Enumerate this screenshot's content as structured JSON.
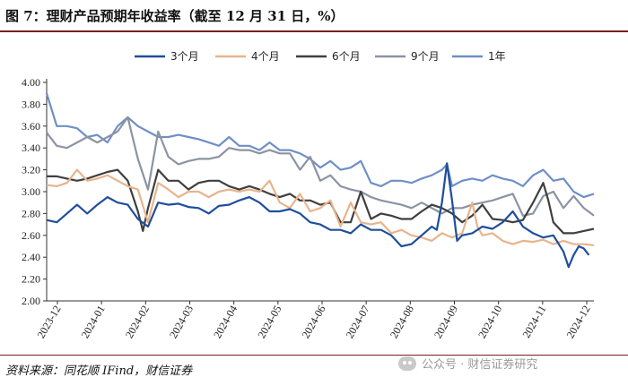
{
  "title": "图 7：理财产品预期年收益率（截至 12 月 31 日，%）",
  "source": "资料来源：同花顺 IFind，财信证券",
  "watermark": "公众号 · 财信证券研究",
  "chart_data": {
    "type": "line",
    "title": "理财产品预期年收益率（截至 12 月 31 日，%）",
    "xlabel": "",
    "ylabel": "",
    "ylim": [
      2.0,
      4.0
    ],
    "yticks": [
      "4.00",
      "3.80",
      "3.60",
      "3.40",
      "3.20",
      "3.00",
      "2.80",
      "2.60",
      "2.40",
      "2.20",
      "2.00"
    ],
    "ytick_values": [
      4.0,
      3.8,
      3.6,
      3.4,
      3.2,
      3.0,
      2.8,
      2.6,
      2.4,
      2.2,
      2.0
    ],
    "xticks": [
      "2023-12",
      "2024-01",
      "2024-02",
      "2024-03",
      "2024-04",
      "2024-05",
      "2024-06",
      "2024-07",
      "2024-08",
      "2024-09",
      "2024-10",
      "2024-11",
      "2024-12"
    ],
    "x_range_weeks": [
      0,
      54
    ],
    "legend": [
      "3个月",
      "4个月",
      "6个月",
      "9个月",
      "1年"
    ],
    "series": [
      {
        "name": "3个月",
        "color": "#1f4e9c",
        "points": [
          [
            0,
            2.74
          ],
          [
            1,
            2.72
          ],
          [
            2,
            2.8
          ],
          [
            3,
            2.88
          ],
          [
            4,
            2.8
          ],
          [
            5,
            2.88
          ],
          [
            6,
            2.95
          ],
          [
            7,
            2.9
          ],
          [
            8,
            2.88
          ],
          [
            9,
            2.75
          ],
          [
            10,
            2.68
          ],
          [
            11,
            2.9
          ],
          [
            12,
            2.88
          ],
          [
            13,
            2.89
          ],
          [
            14,
            2.86
          ],
          [
            15,
            2.85
          ],
          [
            16,
            2.8
          ],
          [
            17,
            2.87
          ],
          [
            18,
            2.88
          ],
          [
            19,
            2.92
          ],
          [
            20,
            2.95
          ],
          [
            21,
            2.9
          ],
          [
            22,
            2.82
          ],
          [
            23,
            2.82
          ],
          [
            24,
            2.84
          ],
          [
            25,
            2.8
          ],
          [
            26,
            2.72
          ],
          [
            27,
            2.7
          ],
          [
            28,
            2.65
          ],
          [
            29,
            2.65
          ],
          [
            30,
            2.62
          ],
          [
            31,
            2.7
          ],
          [
            32,
            2.65
          ],
          [
            33,
            2.65
          ],
          [
            34,
            2.6
          ],
          [
            35,
            2.5
          ],
          [
            36,
            2.52
          ],
          [
            37,
            2.6
          ],
          [
            38,
            2.68
          ],
          [
            38.5,
            2.65
          ],
          [
            39,
            2.9
          ],
          [
            39.5,
            3.26
          ],
          [
            40,
            2.92
          ],
          [
            40.5,
            2.55
          ],
          [
            41,
            2.6
          ],
          [
            42,
            2.62
          ],
          [
            43,
            2.68
          ],
          [
            44,
            2.66
          ],
          [
            45,
            2.72
          ],
          [
            46,
            2.82
          ],
          [
            47,
            2.68
          ],
          [
            48,
            2.62
          ],
          [
            49,
            2.58
          ],
          [
            50,
            2.6
          ],
          [
            51,
            2.45
          ],
          [
            51.5,
            2.31
          ],
          [
            52,
            2.42
          ],
          [
            52.5,
            2.5
          ],
          [
            53,
            2.48
          ],
          [
            53.5,
            2.42
          ]
        ]
      },
      {
        "name": "4个月",
        "color": "#e8b48c",
        "points": [
          [
            0,
            3.06
          ],
          [
            1,
            3.05
          ],
          [
            2,
            3.08
          ],
          [
            3,
            3.2
          ],
          [
            4,
            3.1
          ],
          [
            5,
            3.12
          ],
          [
            6,
            3.15
          ],
          [
            7,
            3.1
          ],
          [
            8,
            3.05
          ],
          [
            9,
            3.02
          ],
          [
            10,
            2.72
          ],
          [
            11,
            3.08
          ],
          [
            12,
            3.02
          ],
          [
            13,
            2.95
          ],
          [
            14,
            3.0
          ],
          [
            15,
            3.0
          ],
          [
            16,
            2.95
          ],
          [
            17,
            3.0
          ],
          [
            18,
            3.02
          ],
          [
            19,
            3.0
          ],
          [
            20,
            3.02
          ],
          [
            21,
            3.0
          ],
          [
            22,
            3.1
          ],
          [
            23,
            2.9
          ],
          [
            24,
            2.85
          ],
          [
            25,
            2.98
          ],
          [
            26,
            2.82
          ],
          [
            27,
            2.85
          ],
          [
            28,
            2.92
          ],
          [
            29,
            2.68
          ],
          [
            30,
            2.9
          ],
          [
            31,
            2.72
          ],
          [
            32,
            2.7
          ],
          [
            33,
            2.72
          ],
          [
            34,
            2.62
          ],
          [
            35,
            2.65
          ],
          [
            36,
            2.6
          ],
          [
            37,
            2.58
          ],
          [
            38,
            2.55
          ],
          [
            39,
            2.62
          ],
          [
            40,
            2.58
          ],
          [
            41,
            2.62
          ],
          [
            42,
            2.9
          ],
          [
            42.5,
            2.68
          ],
          [
            43,
            2.6
          ],
          [
            44,
            2.62
          ],
          [
            45,
            2.55
          ],
          [
            46,
            2.52
          ],
          [
            47,
            2.55
          ],
          [
            48,
            2.54
          ],
          [
            49,
            2.56
          ],
          [
            50,
            2.52
          ],
          [
            51,
            2.55
          ],
          [
            52,
            2.52
          ],
          [
            53,
            2.52
          ],
          [
            54,
            2.51
          ]
        ]
      },
      {
        "name": "6个月",
        "color": "#3f3f3f",
        "points": [
          [
            0,
            3.14
          ],
          [
            1,
            3.14
          ],
          [
            2,
            3.12
          ],
          [
            3,
            3.1
          ],
          [
            4,
            3.12
          ],
          [
            5,
            3.15
          ],
          [
            6,
            3.18
          ],
          [
            7,
            3.2
          ],
          [
            8,
            3.1
          ],
          [
            9,
            2.82
          ],
          [
            9.5,
            2.64
          ],
          [
            10,
            2.85
          ],
          [
            11,
            3.2
          ],
          [
            12,
            3.1
          ],
          [
            13,
            3.1
          ],
          [
            14,
            3.02
          ],
          [
            15,
            3.08
          ],
          [
            16,
            3.1
          ],
          [
            17,
            3.1
          ],
          [
            18,
            3.05
          ],
          [
            19,
            3.02
          ],
          [
            20,
            3.05
          ],
          [
            21,
            3.02
          ],
          [
            22,
            2.98
          ],
          [
            23,
            2.95
          ],
          [
            24,
            2.98
          ],
          [
            25,
            2.92
          ],
          [
            26,
            2.92
          ],
          [
            27,
            2.88
          ],
          [
            28,
            2.9
          ],
          [
            29,
            2.72
          ],
          [
            30,
            2.72
          ],
          [
            31,
            3.0
          ],
          [
            32,
            2.75
          ],
          [
            33,
            2.8
          ],
          [
            34,
            2.78
          ],
          [
            35,
            2.75
          ],
          [
            36,
            2.75
          ],
          [
            37,
            2.82
          ],
          [
            38,
            2.88
          ],
          [
            39,
            2.85
          ],
          [
            40,
            2.8
          ],
          [
            41,
            2.72
          ],
          [
            42,
            2.78
          ],
          [
            43,
            2.88
          ],
          [
            44,
            2.75
          ],
          [
            45,
            2.74
          ],
          [
            46,
            2.72
          ],
          [
            47,
            2.74
          ],
          [
            48,
            2.9
          ],
          [
            49,
            3.08
          ],
          [
            49.5,
            2.92
          ],
          [
            50,
            2.72
          ],
          [
            51,
            2.62
          ],
          [
            52,
            2.62
          ],
          [
            53,
            2.64
          ],
          [
            54,
            2.66
          ]
        ]
      },
      {
        "name": "9个月",
        "color": "#8c93a3",
        "points": [
          [
            0,
            3.54
          ],
          [
            1,
            3.42
          ],
          [
            2,
            3.4
          ],
          [
            3,
            3.45
          ],
          [
            4,
            3.5
          ],
          [
            5,
            3.45
          ],
          [
            6,
            3.5
          ],
          [
            7,
            3.55
          ],
          [
            8,
            3.68
          ],
          [
            9,
            3.3
          ],
          [
            10,
            3.02
          ],
          [
            11,
            3.55
          ],
          [
            12,
            3.32
          ],
          [
            13,
            3.25
          ],
          [
            14,
            3.28
          ],
          [
            15,
            3.3
          ],
          [
            16,
            3.3
          ],
          [
            17,
            3.32
          ],
          [
            18,
            3.4
          ],
          [
            19,
            3.38
          ],
          [
            20,
            3.38
          ],
          [
            21,
            3.35
          ],
          [
            22,
            3.38
          ],
          [
            23,
            3.35
          ],
          [
            24,
            3.35
          ],
          [
            25,
            3.2
          ],
          [
            26,
            3.32
          ],
          [
            27,
            3.1
          ],
          [
            28,
            3.15
          ],
          [
            29,
            3.05
          ],
          [
            30,
            3.02
          ],
          [
            31,
            3.0
          ],
          [
            32,
            2.95
          ],
          [
            33,
            2.92
          ],
          [
            34,
            2.9
          ],
          [
            35,
            2.88
          ],
          [
            36,
            2.85
          ],
          [
            37,
            2.9
          ],
          [
            38,
            2.85
          ],
          [
            39,
            2.8
          ],
          [
            40,
            2.85
          ],
          [
            41,
            2.85
          ],
          [
            42,
            2.88
          ],
          [
            43,
            2.9
          ],
          [
            44,
            2.92
          ],
          [
            45,
            2.95
          ],
          [
            46,
            2.98
          ],
          [
            47,
            2.78
          ],
          [
            48,
            2.8
          ],
          [
            49,
            2.96
          ],
          [
            50,
            3.0
          ],
          [
            51,
            2.85
          ],
          [
            52,
            2.96
          ],
          [
            53,
            2.85
          ],
          [
            54,
            2.78
          ]
        ]
      },
      {
        "name": "1年",
        "color": "#6f8fc6",
        "points": [
          [
            0,
            3.9
          ],
          [
            1,
            3.6
          ],
          [
            2,
            3.6
          ],
          [
            3,
            3.58
          ],
          [
            4,
            3.5
          ],
          [
            5,
            3.52
          ],
          [
            6,
            3.45
          ],
          [
            7,
            3.6
          ],
          [
            8,
            3.68
          ],
          [
            9,
            3.6
          ],
          [
            10,
            3.55
          ],
          [
            11,
            3.5
          ],
          [
            12,
            3.5
          ],
          [
            13,
            3.52
          ],
          [
            14,
            3.5
          ],
          [
            15,
            3.48
          ],
          [
            16,
            3.45
          ],
          [
            17,
            3.42
          ],
          [
            18,
            3.5
          ],
          [
            19,
            3.42
          ],
          [
            20,
            3.42
          ],
          [
            21,
            3.38
          ],
          [
            22,
            3.45
          ],
          [
            23,
            3.38
          ],
          [
            24,
            3.38
          ],
          [
            25,
            3.35
          ],
          [
            26,
            3.3
          ],
          [
            27,
            3.22
          ],
          [
            28,
            3.28
          ],
          [
            29,
            3.2
          ],
          [
            30,
            3.22
          ],
          [
            31,
            3.28
          ],
          [
            32,
            3.08
          ],
          [
            33,
            3.05
          ],
          [
            34,
            3.1
          ],
          [
            35,
            3.1
          ],
          [
            36,
            3.08
          ],
          [
            37,
            3.12
          ],
          [
            38,
            3.15
          ],
          [
            39,
            3.2
          ],
          [
            39.5,
            3.25
          ],
          [
            40,
            3.05
          ],
          [
            41,
            3.1
          ],
          [
            42,
            3.12
          ],
          [
            43,
            3.1
          ],
          [
            44,
            3.15
          ],
          [
            45,
            3.12
          ],
          [
            46,
            3.1
          ],
          [
            47,
            3.05
          ],
          [
            48,
            3.15
          ],
          [
            49,
            3.2
          ],
          [
            50,
            3.1
          ],
          [
            51,
            3.12
          ],
          [
            52,
            3.0
          ],
          [
            53,
            2.95
          ],
          [
            54,
            2.98
          ]
        ]
      }
    ]
  }
}
